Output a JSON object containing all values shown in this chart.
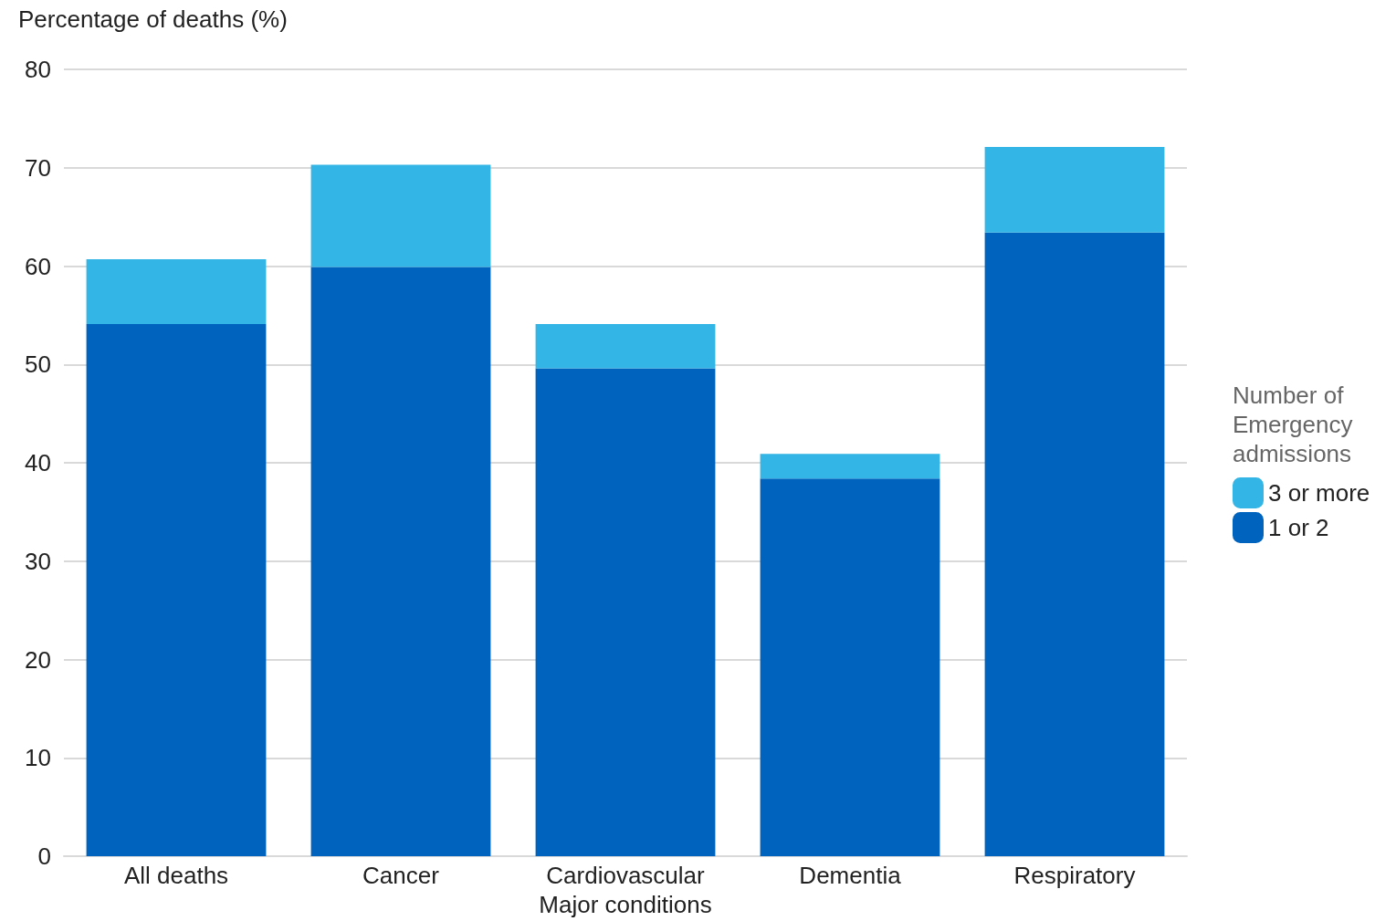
{
  "chart_data": {
    "type": "bar",
    "stacked": true,
    "ylabel": "Percentage of deaths (%)",
    "xlabel": "Major conditions",
    "legend_title": "Number of Emergency admissions",
    "categories": [
      "All deaths",
      "Cancer",
      "Cardiovascular",
      "Dementia",
      "Respiratory"
    ],
    "series": [
      {
        "name": "1 or 2",
        "color": "#0063be",
        "values": [
          54.1,
          59.9,
          49.6,
          38.4,
          63.4
        ]
      },
      {
        "name": "3 or more",
        "color": "#33b5e5",
        "values": [
          6.6,
          10.4,
          4.5,
          2.5,
          8.7
        ]
      }
    ],
    "ylim": [
      0,
      80
    ],
    "yticks": [
      0,
      10,
      20,
      30,
      40,
      50,
      60,
      70,
      80
    ],
    "grid": "y",
    "legend": "right"
  }
}
